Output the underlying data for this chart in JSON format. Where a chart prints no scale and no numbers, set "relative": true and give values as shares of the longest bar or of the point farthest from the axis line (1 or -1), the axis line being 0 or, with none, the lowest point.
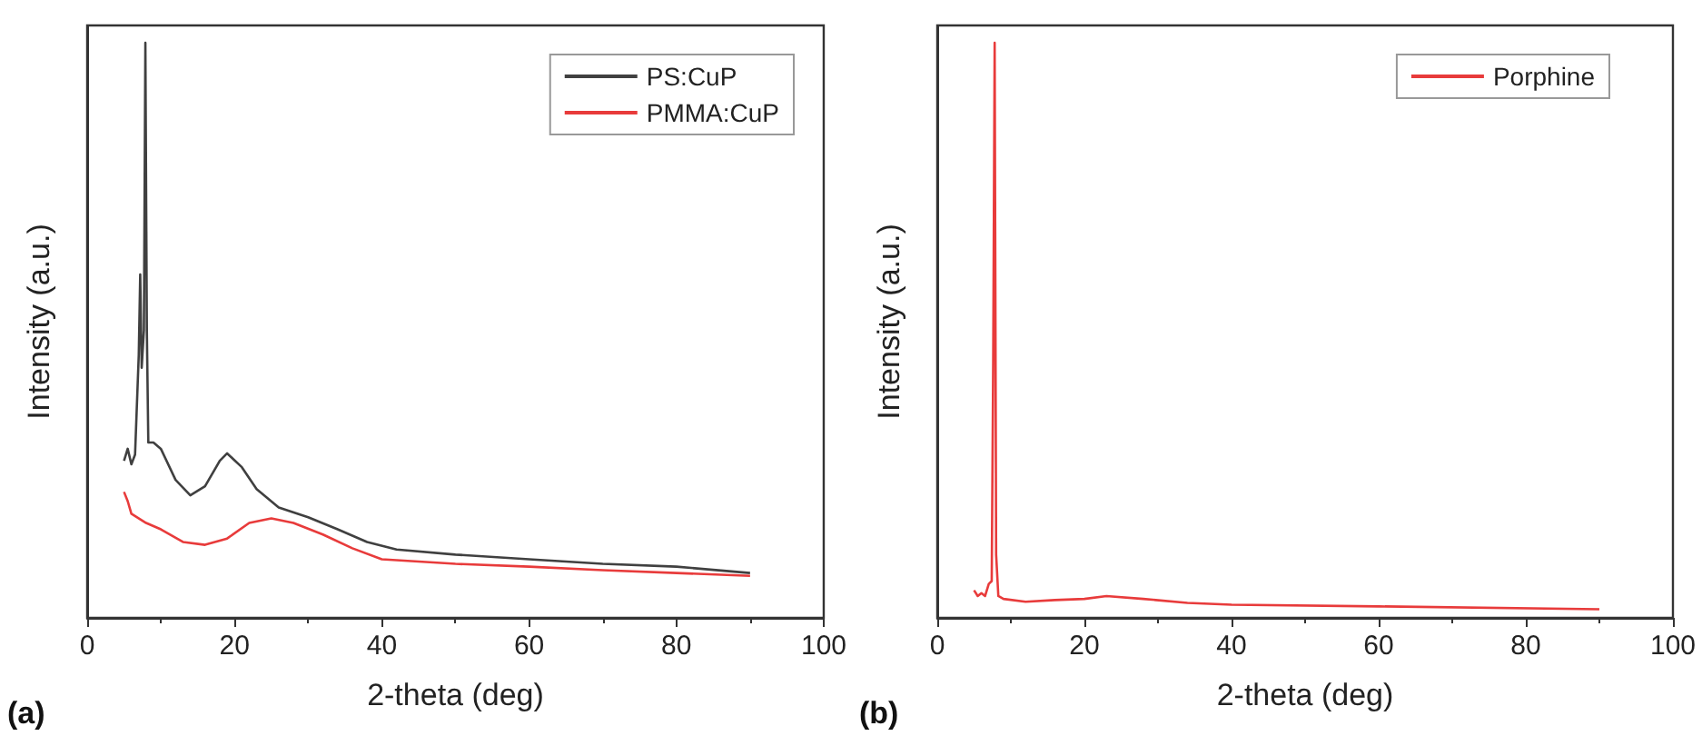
{
  "chart_data": [
    {
      "type": "line",
      "relative": true,
      "xlabel": "2-theta (deg)",
      "ylabel": "Intensity (a.u.)",
      "xlim": [
        0,
        100
      ],
      "xticks": [
        0,
        20,
        40,
        60,
        80,
        100
      ],
      "legend": "top right",
      "grid": false,
      "marker": "none",
      "line_style": "solid",
      "annotations": [
        "(a)"
      ],
      "series": [
        {
          "name": "PS:CuP",
          "color": "#404040",
          "x": [
            5,
            5.5,
            6,
            6.5,
            7,
            7.2,
            7.4,
            7.7,
            7.9,
            8.1,
            8.3,
            9,
            10,
            12,
            14,
            16,
            18,
            19,
            21,
            23,
            26,
            30,
            34,
            38,
            42,
            50,
            60,
            70,
            80,
            90
          ],
          "values": [
            0.273,
            0.294,
            0.267,
            0.284,
            0.457,
            0.597,
            0.435,
            0.5,
            1.0,
            0.5,
            0.305,
            0.305,
            0.294,
            0.24,
            0.213,
            0.229,
            0.273,
            0.286,
            0.262,
            0.224,
            0.192,
            0.175,
            0.154,
            0.132,
            0.119,
            0.11,
            0.102,
            0.094,
            0.089,
            0.078
          ]
        },
        {
          "name": "PMMA:CuP",
          "color": "#e83b3b",
          "x": [
            5,
            5.5,
            6,
            8,
            10,
            13,
            16,
            19,
            22,
            25,
            28,
            32,
            36,
            40,
            50,
            60,
            70,
            80,
            90
          ],
          "values": [
            0.219,
            0.203,
            0.181,
            0.165,
            0.154,
            0.132,
            0.127,
            0.138,
            0.165,
            0.173,
            0.165,
            0.145,
            0.121,
            0.102,
            0.094,
            0.089,
            0.083,
            0.078,
            0.073
          ]
        }
      ]
    },
    {
      "type": "line",
      "relative": true,
      "xlabel": "2-theta (deg)",
      "ylabel": "Intensity (a.u.)",
      "xlim": [
        0,
        100
      ],
      "xticks": [
        0,
        20,
        40,
        60,
        80,
        100
      ],
      "legend": "top right",
      "grid": false,
      "marker": "none",
      "line_style": "solid",
      "annotations": [
        "(b)"
      ],
      "series": [
        {
          "name": "Porphine",
          "color": "#e83b3b",
          "x": [
            5,
            5.5,
            6,
            6.5,
            7,
            7.4,
            7.6,
            7.8,
            8.0,
            8.3,
            9,
            12,
            16,
            20,
            23,
            28,
            34,
            40,
            60,
            90
          ],
          "values": [
            0.048,
            0.038,
            0.043,
            0.038,
            0.059,
            0.064,
            0.444,
            1.0,
            0.11,
            0.038,
            0.033,
            0.028,
            0.031,
            0.033,
            0.038,
            0.033,
            0.026,
            0.023,
            0.02,
            0.015
          ]
        }
      ]
    }
  ]
}
